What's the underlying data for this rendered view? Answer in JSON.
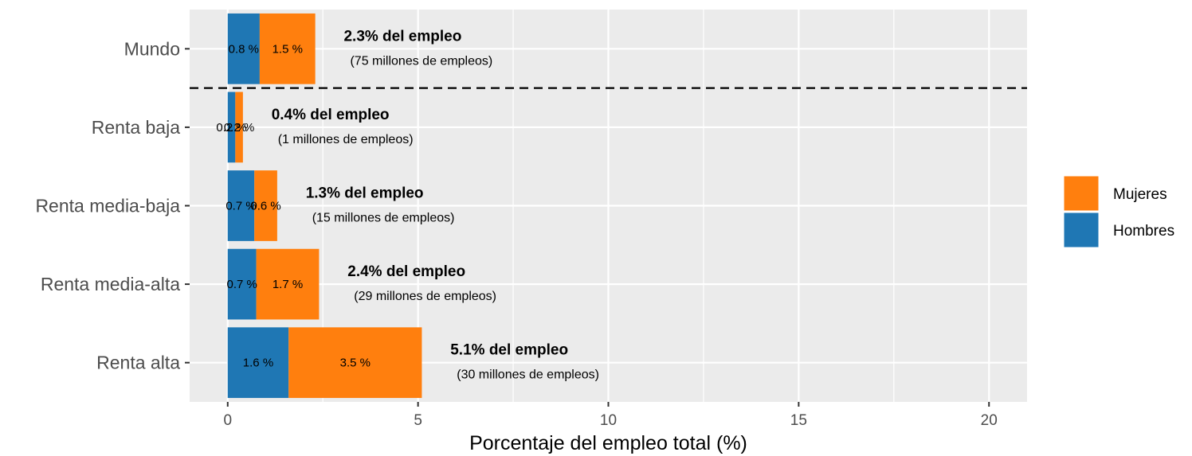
{
  "chart_data": {
    "type": "bar",
    "orientation": "horizontal",
    "stacked": true,
    "categories": [
      "Mundo",
      "Renta baja",
      "Renta media-baja",
      "Renta media-alta",
      "Renta alta"
    ],
    "series": [
      {
        "name": "Hombres",
        "color": "#1f77b4",
        "values": [
          0.84,
          0.2,
          0.7,
          0.75,
          1.6
        ],
        "labels": [
          "0.8 %",
          "0.2 %",
          "0.7 %",
          "0.7 %",
          "1.6 %"
        ]
      },
      {
        "name": "Mujeres",
        "color": "#ff7f0e",
        "values": [
          1.46,
          0.2,
          0.6,
          1.65,
          3.5
        ],
        "labels": [
          "1.5 %",
          "0.2 %",
          "0.6 %",
          "1.7 %",
          "3.5 %"
        ]
      }
    ],
    "totals": [
      {
        "total": 2.3,
        "label": "2.3% del empleo",
        "sublabel": "(75 millones de empleos)"
      },
      {
        "total": 0.4,
        "label": "0.4% del empleo",
        "sublabel": "(1 millones de empleos)"
      },
      {
        "total": 1.3,
        "label": "1.3% del empleo",
        "sublabel": "(15 millones de empleos)"
      },
      {
        "total": 2.4,
        "label": "2.4% del empleo",
        "sublabel": "(29 millones de empleos)"
      },
      {
        "total": 5.1,
        "label": "5.1% del empleo",
        "sublabel": "(30 millones de empleos)"
      }
    ],
    "xlabel": "Porcentaje del empleo total (%)",
    "ylabel": "",
    "xlim": [
      -1,
      21
    ],
    "xticks": [
      0,
      5,
      10,
      15,
      20
    ],
    "grid": true,
    "separator_after_category": "Mundo",
    "legend": {
      "position": "right",
      "entries": [
        {
          "name": "Mujeres",
          "color": "#ff7f0e"
        },
        {
          "name": "Hombres",
          "color": "#1f77b4"
        }
      ]
    },
    "panel_background": "#ebebeb",
    "grid_color": "#ffffff"
  }
}
